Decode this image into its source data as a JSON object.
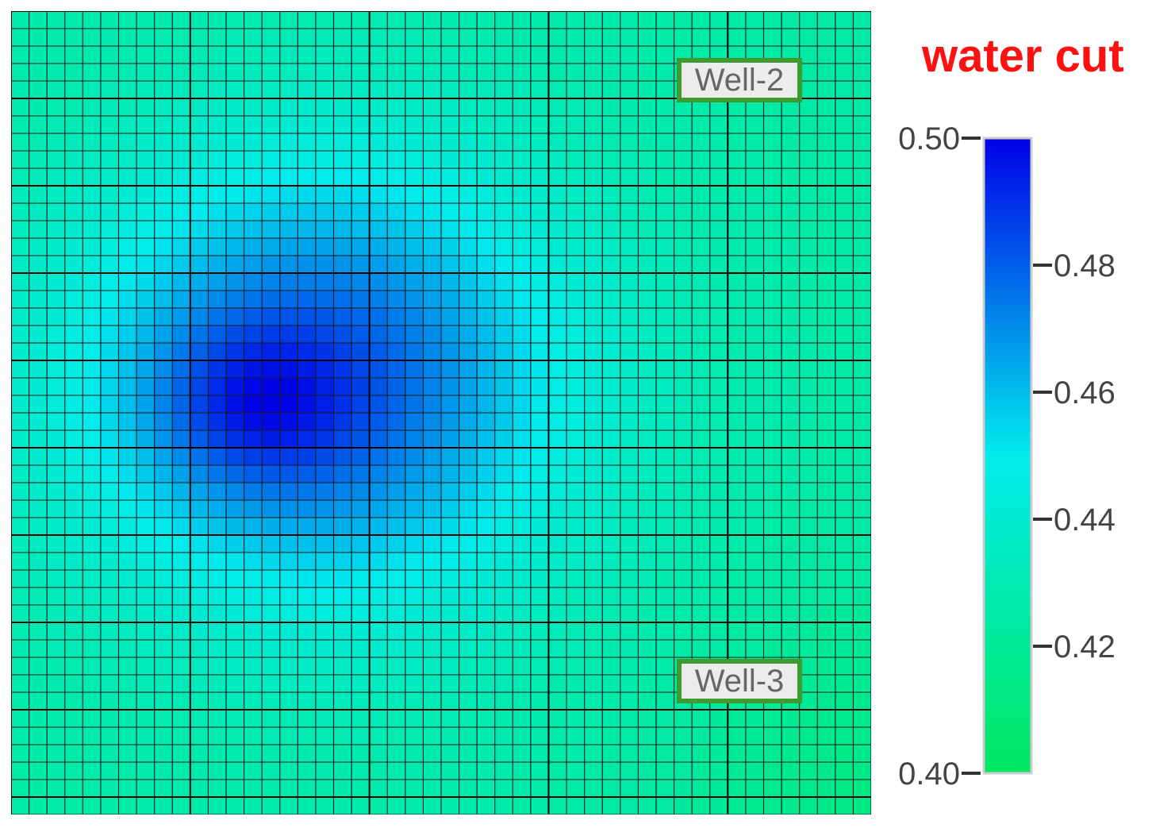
{
  "chart_data": {
    "type": "heatmap",
    "colorbar": {
      "title": "water cut",
      "min": 0.4,
      "max": 0.5,
      "ticks": [
        "0.50",
        "0.48",
        "0.46",
        "0.44",
        "0.42",
        "0.40"
      ],
      "tick_values": [
        0.5,
        0.48,
        0.46,
        0.44,
        0.42,
        0.4
      ],
      "colors_low_to_high": [
        "#00e860",
        "#00e8e8",
        "#0000e8"
      ]
    },
    "grid": {
      "cols": 48,
      "rows": 46
    },
    "field": {
      "background": 0.425,
      "peak_value": 0.5,
      "description_cells": "smooth plume"
    },
    "wells": [
      {
        "label": "Well-2"
      },
      {
        "label": "Well-3"
      }
    ]
  }
}
